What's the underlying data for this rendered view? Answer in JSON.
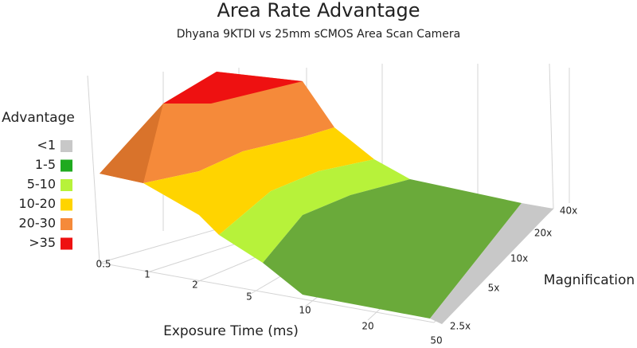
{
  "chart_data": {
    "type": "surface",
    "title": "Area Rate Advantage",
    "subtitle": "Dhyana 9KTDI vs 25mm sCMOS Area Scan Camera",
    "x_label": "Exposure Time (ms)",
    "y_label": "Magnification",
    "categories": [
      "0.5",
      "1",
      "2",
      "5",
      "10",
      "20",
      "50"
    ],
    "depth_categories": [
      "2.5x",
      "5x",
      "10x",
      "20x",
      "40x"
    ],
    "legend": {
      "title": "Advantage",
      "items": [
        {
          "name": "<1",
          "color": "#c8c8c8"
        },
        {
          "name": "1-5",
          "color": "#1faa1f"
        },
        {
          "name": "5-10",
          "color": "#b7f23a"
        },
        {
          "name": "10-20",
          "color": "#ffd400"
        },
        {
          "name": "20-30",
          "color": "#f58a3a"
        },
        {
          "name": ">35",
          "color": "#ee1111"
        }
      ]
    }
  }
}
